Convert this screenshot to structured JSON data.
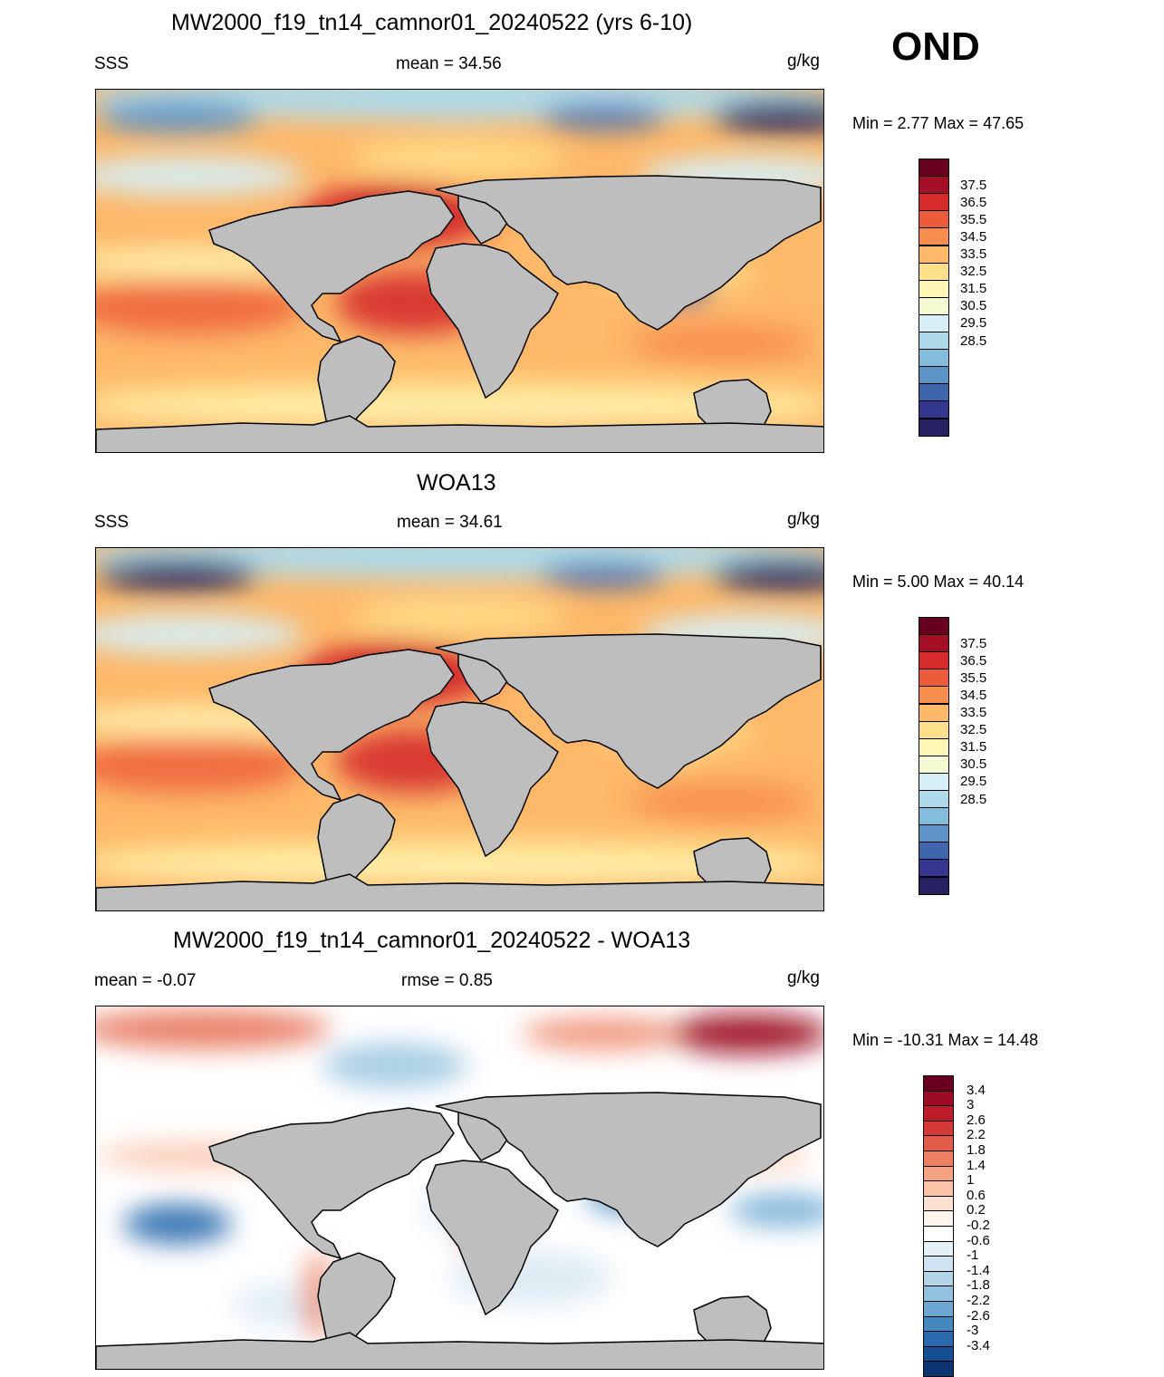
{
  "season": "OND",
  "unit": "g/kg",
  "land_color": "#bebebe",
  "panels": [
    {
      "title": "MW2000_f19_tn14_camnor01_20240522 (yrs 6-10)",
      "left_label": "SSS",
      "center_label": "mean =  34.56",
      "unit": "g/kg",
      "minmax": "Min =   2.77 Max =  47.65",
      "kind": "model"
    },
    {
      "title": "WOA13",
      "left_label": "SSS",
      "center_label": "mean =  34.61",
      "unit": "g/kg",
      "minmax": "Min =   5.00 Max =  40.14",
      "kind": "obs"
    },
    {
      "title": "MW2000_f19_tn14_camnor01_20240522 - WOA13",
      "left_label": "mean =  -0.07",
      "center_label": "rmse =   0.85",
      "unit": "g/kg",
      "minmax": "Min = -10.31 Max =  14.48",
      "kind": "diff"
    }
  ],
  "colorbar_abs": {
    "labels": [
      "37.5",
      "36.5",
      "35.5",
      "34.5",
      "33.5",
      "32.5",
      "31.5",
      "30.5",
      "29.5",
      "28.5"
    ],
    "colors": [
      "#67001f",
      "#a50f26",
      "#d52c2b",
      "#ec5b3a",
      "#f78e4f",
      "#fdb869",
      "#fee08b",
      "#fff6b5",
      "#f5fbd3",
      "#d6eef5",
      "#aedaeb",
      "#84bddb",
      "#5c94c7",
      "#3f65ad",
      "#34368f",
      "#262262"
    ]
  },
  "colorbar_diff": {
    "labels": [
      "3.4",
      "3",
      "2.6",
      "2.2",
      "1.8",
      "1.4",
      "1",
      "0.6",
      "0.2",
      "-0.2",
      "-0.6",
      "-1",
      "-1.4",
      "-1.8",
      "-2.2",
      "-2.6",
      "-3",
      "-3.4"
    ],
    "colors": [
      "#67001f",
      "#9e0b25",
      "#bd1d2b",
      "#d33a37",
      "#e25c4a",
      "#ee8061",
      "#f5a284",
      "#fac3a8",
      "#fde0cf",
      "#fff5ef",
      "#ffffff",
      "#e6f0f7",
      "#cfe3f0",
      "#b4d4e8",
      "#93c2df",
      "#6aa8d1",
      "#4488bf",
      "#2a6aad",
      "#154e91",
      "#0b3470"
    ]
  }
}
